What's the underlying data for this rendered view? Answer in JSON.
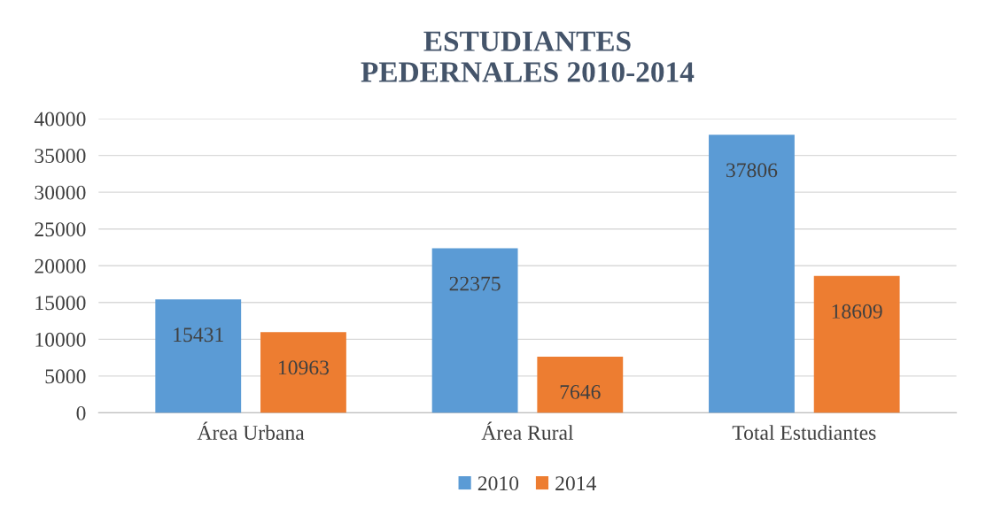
{
  "chart_data": {
    "type": "bar",
    "title": "ESTUDIANTES\nPEDERNALES 2010-2014",
    "categories": [
      "Área Urbana",
      "Área Rural",
      "Total Estudiantes"
    ],
    "series": [
      {
        "name": "2010",
        "color": "#5b9bd5",
        "values": [
          15431,
          22375,
          37806
        ]
      },
      {
        "name": "2014",
        "color": "#ed7d31",
        "values": [
          10963,
          7646,
          18609
        ]
      }
    ],
    "ylim": [
      0,
      40000
    ],
    "yticks": [
      0,
      5000,
      10000,
      15000,
      20000,
      25000,
      30000,
      35000,
      40000
    ],
    "grid": "y",
    "legend": "bottom",
    "data_labels": true
  }
}
